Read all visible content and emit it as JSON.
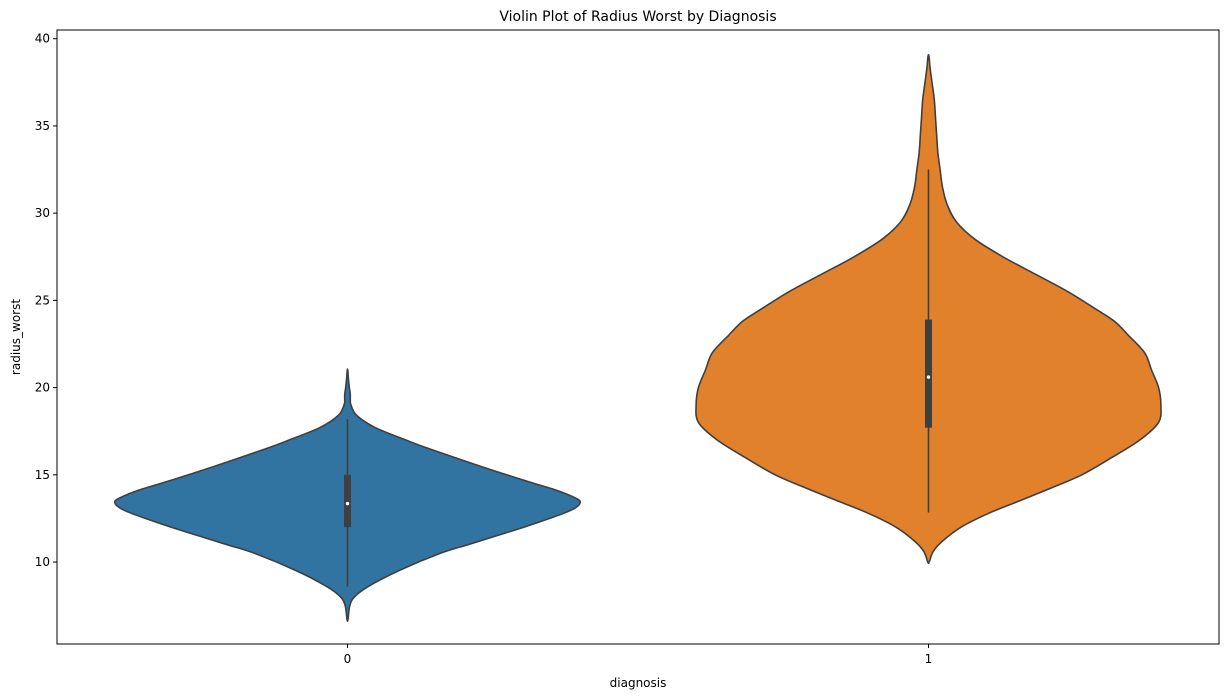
{
  "chart_data": {
    "type": "violin",
    "title": "Violin Plot of Radius Worst by Diagnosis",
    "xlabel": "diagnosis",
    "ylabel": "radius_worst",
    "categories": [
      "0",
      "1"
    ],
    "ylim": [
      5.3,
      40.5
    ],
    "yticks": [
      10,
      15,
      20,
      25,
      30,
      35,
      40
    ],
    "colors": [
      "#3274a1",
      "#e1812c"
    ],
    "series": [
      {
        "category": "0",
        "min": 7.93,
        "max": 21.0,
        "whisker_low": 8.6,
        "whisker_high": 18.2,
        "q1": 12.0,
        "median": 13.35,
        "q3": 15.0,
        "density_y": [
          6.7,
          7.5,
          8.0,
          8.6,
          9.5,
          10.5,
          11.0,
          11.5,
          12.0,
          12.5,
          12.9,
          13.2,
          13.5,
          13.8,
          14.2,
          14.6,
          15.5,
          16.5,
          17.0,
          17.7,
          18.4,
          19.0,
          19.3,
          19.6,
          20.0,
          20.5,
          21.0
        ],
        "density_w": [
          0.002,
          0.01,
          0.03,
          0.09,
          0.22,
          0.4,
          0.52,
          0.64,
          0.76,
          0.87,
          0.95,
          0.99,
          1.0,
          0.96,
          0.88,
          0.78,
          0.57,
          0.35,
          0.25,
          0.12,
          0.04,
          0.015,
          0.012,
          0.012,
          0.008,
          0.004,
          0.001
        ]
      },
      {
        "category": "1",
        "min": 12.84,
        "max": 36.04,
        "whisker_low": 12.84,
        "whisker_high": 32.5,
        "q1": 17.7,
        "median": 20.6,
        "q3": 23.9,
        "density_y": [
          10.0,
          10.6,
          11.2,
          12.0,
          12.8,
          13.5,
          14.2,
          15.0,
          16.0,
          17.0,
          18.0,
          19.0,
          20.0,
          21.0,
          22.0,
          23.0,
          23.8,
          24.5,
          25.5,
          26.5,
          27.5,
          28.5,
          29.5,
          30.5,
          31.5,
          32.5,
          33.5,
          34.5,
          35.5,
          36.5,
          37.5,
          38.3,
          39.0
        ],
        "density_w": [
          0.003,
          0.02,
          0.06,
          0.14,
          0.26,
          0.39,
          0.52,
          0.66,
          0.79,
          0.91,
          0.99,
          1.0,
          0.99,
          0.96,
          0.93,
          0.86,
          0.8,
          0.72,
          0.6,
          0.46,
          0.32,
          0.2,
          0.12,
          0.08,
          0.06,
          0.05,
          0.04,
          0.035,
          0.03,
          0.025,
          0.015,
          0.007,
          0.002
        ]
      }
    ]
  }
}
